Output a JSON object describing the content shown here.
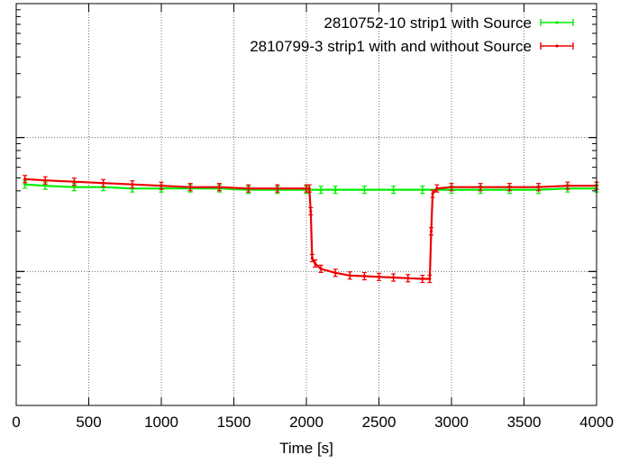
{
  "chart_data": {
    "type": "line",
    "title": "",
    "xlabel": "Time [s]",
    "ylabel": "",
    "xlim": [
      0,
      4000
    ],
    "ylog": true,
    "ydecades": 3,
    "ylim": [
      0,
      3
    ],
    "x_tick_labels": [
      "0",
      "500",
      "1000",
      "1500",
      "2000",
      "2500",
      "3000",
      "3500",
      "4000"
    ],
    "x_ticks": [
      0,
      500,
      1000,
      1500,
      2000,
      2500,
      3000,
      3500,
      4000
    ],
    "grid": true,
    "legend_position": "top-right",
    "series": [
      {
        "name": "2810752-10 strip1 with Source",
        "color": "#00ee00",
        "errorbars": true,
        "x": [
          60,
          200,
          400,
          600,
          800,
          1000,
          1200,
          1400,
          1600,
          1800,
          2000,
          2100,
          2200,
          2400,
          2600,
          2800,
          3000,
          3200,
          3400,
          3600,
          3800,
          4000
        ],
        "y": [
          1.65,
          1.64,
          1.63,
          1.63,
          1.62,
          1.62,
          1.62,
          1.62,
          1.61,
          1.61,
          1.61,
          1.61,
          1.61,
          1.61,
          1.61,
          1.61,
          1.61,
          1.61,
          1.61,
          1.61,
          1.62,
          1.62
        ]
      },
      {
        "name": "2810799-3 strip1 with and without Source",
        "color": "#ee0000",
        "errorbars": true,
        "x": [
          60,
          200,
          400,
          600,
          800,
          1000,
          1200,
          1400,
          1600,
          1800,
          2000,
          2020,
          2030,
          2040,
          2060,
          2100,
          2200,
          2300,
          2400,
          2500,
          2600,
          2700,
          2800,
          2850,
          2860,
          2870,
          2900,
          3000,
          3200,
          3400,
          3600,
          3800,
          4000
        ],
        "y": [
          1.69,
          1.68,
          1.67,
          1.66,
          1.65,
          1.64,
          1.63,
          1.63,
          1.62,
          1.62,
          1.62,
          1.62,
          1.45,
          1.1,
          1.06,
          1.02,
          0.99,
          0.97,
          0.965,
          0.96,
          0.955,
          0.95,
          0.945,
          0.945,
          1.3,
          1.58,
          1.62,
          1.63,
          1.63,
          1.63,
          1.63,
          1.64,
          1.64
        ]
      }
    ]
  }
}
